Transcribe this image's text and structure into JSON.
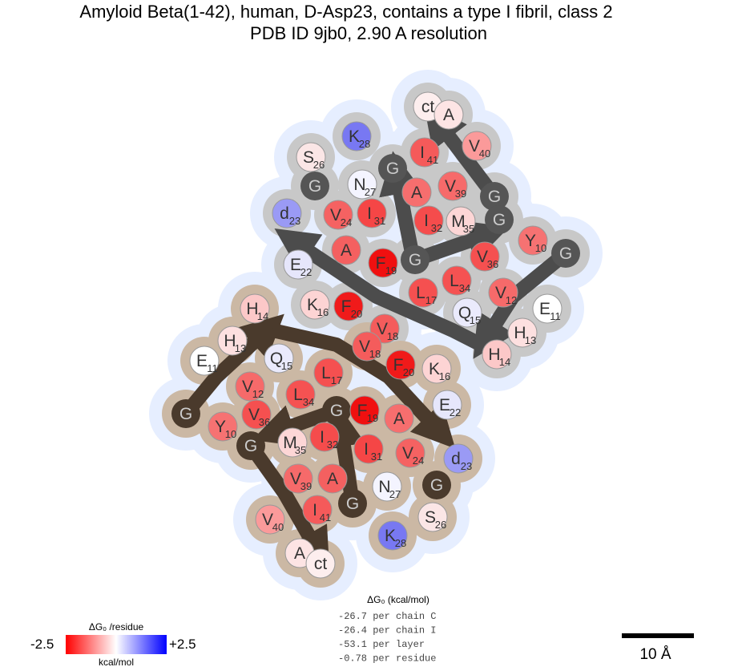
{
  "header": {
    "title": "Amyloid Beta(1-42), human, D-Asp23, contains a type I fibril, class 2",
    "subtitle": "PDB ID 9jb0, 2.90 A resolution"
  },
  "chains": [
    {
      "nodes": [
        {
          "label": "ct",
          "color": "#fdeeee"
        },
        {
          "label": "A",
          "color": "#fde4e4"
        },
        {
          "label": "V",
          "num": "40",
          "color": "#fb9a9a"
        },
        {
          "label": "I",
          "num": "41",
          "color": "#f55a5a"
        },
        {
          "label": "G",
          "color": "#555555"
        },
        {
          "label": "G",
          "color": "#555555"
        },
        {
          "label": "V",
          "num": "39",
          "color": "#f66a6a"
        },
        {
          "label": "A",
          "color": "#f66e6e"
        },
        {
          "label": "K",
          "num": "28",
          "color": "#7878f2"
        },
        {
          "label": "S",
          "num": "26",
          "color": "#fbe6e6"
        },
        {
          "label": "N",
          "num": "27",
          "color": "#f4f4ff"
        },
        {
          "label": "G",
          "color": "#555555"
        },
        {
          "label": "d",
          "num": "23",
          "color": "#9a9af5"
        },
        {
          "label": "V",
          "num": "24",
          "color": "#f56262"
        },
        {
          "label": "I",
          "num": "31",
          "color": "#f54646"
        },
        {
          "label": "I",
          "num": "32",
          "color": "#f54c4c"
        },
        {
          "label": "M",
          "num": "35",
          "color": "#fdd6d6"
        },
        {
          "label": "G",
          "color": "#555555"
        },
        {
          "label": "Y",
          "num": "10",
          "color": "#f67272"
        },
        {
          "label": "G",
          "color": "#555555"
        },
        {
          "label": "V",
          "num": "36",
          "color": "#f55050"
        },
        {
          "label": "V",
          "num": "12",
          "color": "#f66a6a"
        },
        {
          "label": "L",
          "num": "34",
          "color": "#f55252"
        },
        {
          "label": "G",
          "color": "#555555"
        },
        {
          "label": "F",
          "num": "19",
          "color": "#f01010"
        },
        {
          "label": "A",
          "color": "#f46060"
        },
        {
          "label": "E",
          "num": "22",
          "color": "#e6e6fb"
        },
        {
          "label": "K",
          "num": "16",
          "color": "#fdd4d4"
        },
        {
          "label": "F",
          "num": "20",
          "color": "#f01a1a"
        },
        {
          "label": "L",
          "num": "17",
          "color": "#f55050"
        },
        {
          "label": "Q",
          "num": "15",
          "color": "#eaeafc"
        },
        {
          "label": "E",
          "num": "11",
          "color": "#ffffff"
        },
        {
          "label": "H",
          "num": "13",
          "color": "#fde0e0"
        },
        {
          "label": "H",
          "num": "14",
          "color": "#fcc8c8"
        },
        {
          "label": "V",
          "num": "18",
          "color": "#f45c5c"
        }
      ]
    },
    {
      "nodes": [
        {
          "label": "H",
          "num": "14",
          "color": "#fcc8c8"
        },
        {
          "label": "H",
          "num": "13",
          "color": "#fde0e0"
        },
        {
          "label": "E",
          "num": "11",
          "color": "#ffffff"
        },
        {
          "label": "Q",
          "num": "15",
          "color": "#eaeafc"
        },
        {
          "label": "V",
          "num": "12",
          "color": "#f66a6a"
        },
        {
          "label": "V",
          "num": "36",
          "color": "#f55050"
        },
        {
          "label": "Y",
          "num": "10",
          "color": "#f67272"
        },
        {
          "label": "G",
          "color": "#4a3a2c"
        },
        {
          "label": "G",
          "color": "#4a3a2c"
        },
        {
          "label": "M",
          "num": "35",
          "color": "#fdd6d6"
        },
        {
          "label": "V",
          "num": "39",
          "color": "#f66a6a"
        },
        {
          "label": "V",
          "num": "40",
          "color": "#fb9a9a"
        },
        {
          "label": "I",
          "num": "41",
          "color": "#f55a5a"
        },
        {
          "label": "I",
          "num": "32",
          "color": "#f54c4c"
        },
        {
          "label": "L",
          "num": "34",
          "color": "#f55252"
        },
        {
          "label": "L",
          "num": "17",
          "color": "#f55050"
        },
        {
          "label": "G",
          "color": "#4a3a2c"
        },
        {
          "label": "F",
          "num": "19",
          "color": "#f01010"
        },
        {
          "label": "I",
          "num": "31",
          "color": "#f54646"
        },
        {
          "label": "A",
          "color": "#f46060"
        },
        {
          "label": "G",
          "color": "#4a3a2c"
        },
        {
          "label": "N",
          "num": "27",
          "color": "#f4f4ff"
        },
        {
          "label": "K",
          "num": "28",
          "color": "#7878f2"
        },
        {
          "label": "S",
          "num": "26",
          "color": "#fbe6e6"
        },
        {
          "label": "G",
          "color": "#4a3a2c"
        },
        {
          "label": "V",
          "num": "24",
          "color": "#f56262"
        },
        {
          "label": "d",
          "num": "23",
          "color": "#9a9af5"
        },
        {
          "label": "A",
          "color": "#f66e6e"
        },
        {
          "label": "E",
          "num": "22",
          "color": "#e6e6fb"
        },
        {
          "label": "F",
          "num": "20",
          "color": "#f01a1a"
        },
        {
          "label": "K",
          "num": "16",
          "color": "#fdd4d4"
        },
        {
          "label": "V",
          "num": "18",
          "color": "#f45c5c"
        },
        {
          "label": "A",
          "color": "#fde4e4"
        },
        {
          "label": "ct",
          "color": "#fdeeee"
        }
      ]
    }
  ],
  "legend": {
    "title": "ΔG₀ /residue",
    "min": "-2.5",
    "max": "+2.5",
    "unit": "kcal/mol"
  },
  "energy": {
    "title": "ΔG₀ (kcal/mol)",
    "lines": [
      "-26.7 per chain C",
      "-26.4 per chain I",
      "-53.1 per layer",
      "-0.78 per residue"
    ]
  },
  "scale": {
    "label": "10 Å"
  }
}
